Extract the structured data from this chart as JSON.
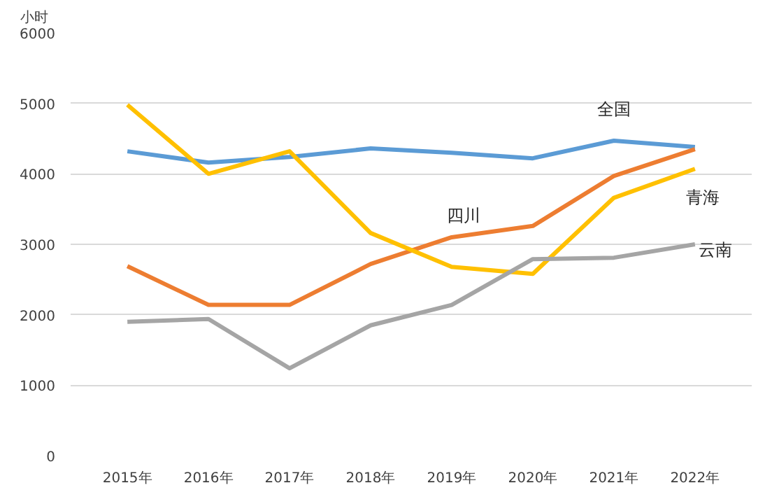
{
  "chart_data": {
    "type": "line",
    "ylabel": "小时",
    "categories": [
      "2015年",
      "2016年",
      "2017年",
      "2018年",
      "2019年",
      "2020年",
      "2021年",
      "2022年"
    ],
    "series": [
      {
        "name": "全国",
        "color": "#5b9bd5",
        "values": [
          4320,
          4160,
          4240,
          4360,
          4300,
          4220,
          4470,
          4380
        ]
      },
      {
        "name": "四川",
        "color": "#ed7d31",
        "values": [
          2690,
          2140,
          2140,
          2720,
          3100,
          3260,
          3970,
          4350
        ]
      },
      {
        "name": "青海",
        "color": "#ffc000",
        "values": [
          4980,
          4000,
          4320,
          3160,
          2680,
          2580,
          3660,
          4070
        ]
      },
      {
        "name": "云南",
        "color": "#a5a5a5",
        "values": [
          1900,
          1940,
          1240,
          1850,
          2140,
          2790,
          2810,
          3000
        ]
      }
    ],
    "ylim": [
      0,
      6000
    ],
    "yticks": [
      0,
      1000,
      2000,
      3000,
      4000,
      5000,
      6000
    ],
    "grid": "y",
    "legend": false
  }
}
